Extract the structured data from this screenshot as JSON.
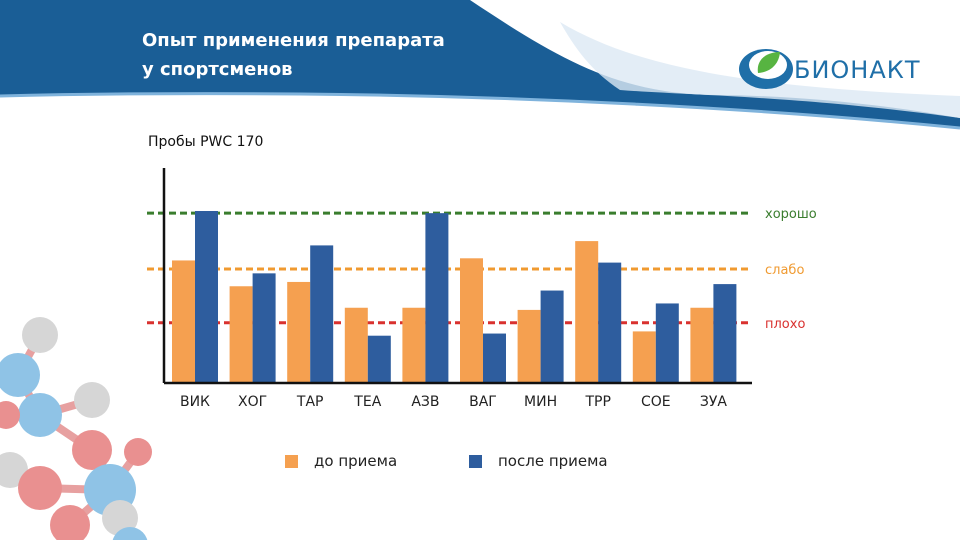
{
  "slide": {
    "title": "Опыт применения  препарата\nу спортсменов",
    "subtitle": "Пробы PWC 170"
  },
  "logo": {
    "text": "БИОНАКТ",
    "icon": "leaf-drop-icon"
  },
  "colors": {
    "header_blue": "#1a5e96",
    "before": "#f5a050",
    "after": "#2e5d9e",
    "good_line": "#3a7d2e",
    "weak_line": "#f09a30",
    "bad_line": "#d9312f",
    "logo_blue": "#1f6fa8",
    "logo_green": "#57b441"
  },
  "chart_data": {
    "type": "bar",
    "title": "",
    "xlabel": "",
    "ylabel": "",
    "ylim": [
      0,
      100
    ],
    "categories": [
      "ВИК",
      "ХОГ",
      "ТАР",
      "ТЕА",
      "АЗВ",
      "ВАГ",
      "МИН",
      "ТРР",
      "СОЕ",
      "ЗУА"
    ],
    "series": [
      {
        "name": "до приема",
        "values": [
          57,
          45,
          47,
          35,
          35,
          58,
          34,
          66,
          24,
          35
        ]
      },
      {
        "name": "после приема",
        "values": [
          80,
          51,
          64,
          22,
          79,
          23,
          43,
          56,
          37,
          46
        ]
      }
    ],
    "reference_lines": [
      {
        "label": "хорошо",
        "value": 79
      },
      {
        "label": "слабо",
        "value": 53
      },
      {
        "label": "плохо",
        "value": 28
      }
    ],
    "legend": [
      "до приема",
      "после приема"
    ],
    "grid": false
  }
}
